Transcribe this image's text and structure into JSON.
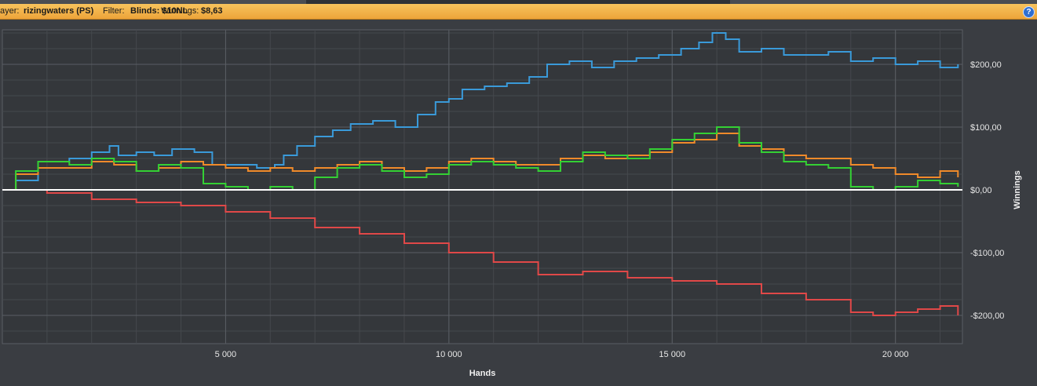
{
  "header": {
    "player_label": "ayer:",
    "player_value": "rizingwaters (PS)",
    "filter_label": "Filter:",
    "filter_value": "Blinds: $10NL",
    "winnings_label": "Winnings:",
    "winnings_value": "$8,63",
    "help_icon": "help-icon"
  },
  "colors": {
    "background": "#3a3d42",
    "plot_background": "#34373b",
    "grid_major": "#5a5e64",
    "grid_minor": "#45484d",
    "header_bar": "#f0a840",
    "zero_line": "#ffffff"
  },
  "chart_data": {
    "type": "line",
    "title": "",
    "xlabel": "Hands",
    "ylabel": "Winnings",
    "xlim": [
      0,
      21500
    ],
    "ylim": [
      -245,
      255
    ],
    "x_ticks": [
      5000,
      10000,
      15000,
      20000
    ],
    "x_tick_labels": [
      "5 000",
      "10 000",
      "15 000",
      "20 000"
    ],
    "y_ticks": [
      200,
      100,
      0,
      -100,
      -200
    ],
    "y_tick_labels": [
      "$200,00",
      "$100,00",
      "$0,00",
      "-$100,00",
      "-$200,00"
    ],
    "y_axis_side": "right",
    "grid": true,
    "legend": "none",
    "series": [
      {
        "color": "#3a9ad9",
        "x": [
          0,
          300,
          800,
          1500,
          2000,
          2400,
          2600,
          3000,
          3400,
          3800,
          4300,
          4700,
          5200,
          5700,
          6100,
          6300,
          6600,
          7000,
          7400,
          7800,
          8300,
          8800,
          9300,
          9700,
          10000,
          10300,
          10800,
          11300,
          11800,
          12200,
          12700,
          13200,
          13700,
          14200,
          14700,
          15200,
          15600,
          15900,
          16200,
          16500,
          17000,
          17500,
          18000,
          18500,
          19000,
          19500,
          20000,
          20500,
          21000,
          21400
        ],
        "y": [
          0,
          15,
          45,
          50,
          60,
          70,
          55,
          60,
          55,
          65,
          60,
          40,
          40,
          35,
          40,
          55,
          70,
          85,
          95,
          105,
          110,
          100,
          120,
          140,
          145,
          160,
          165,
          170,
          180,
          200,
          205,
          195,
          205,
          210,
          215,
          225,
          235,
          250,
          240,
          220,
          225,
          215,
          215,
          220,
          205,
          210,
          200,
          205,
          195,
          200
        ]
      },
      {
        "color": "#f08a2a",
        "x": [
          0,
          300,
          800,
          1500,
          2000,
          2500,
          3000,
          3500,
          4000,
          4500,
          5000,
          5500,
          6000,
          6500,
          7000,
          7500,
          8000,
          8500,
          9000,
          9500,
          10000,
          10500,
          11000,
          11500,
          12000,
          12500,
          13000,
          13500,
          14000,
          14500,
          15000,
          15500,
          16000,
          16500,
          17000,
          17500,
          18000,
          18500,
          19000,
          19500,
          20000,
          20500,
          21000,
          21400
        ],
        "y": [
          0,
          25,
          35,
          35,
          45,
          40,
          30,
          35,
          45,
          40,
          35,
          30,
          35,
          30,
          35,
          40,
          45,
          35,
          30,
          35,
          45,
          50,
          45,
          40,
          40,
          50,
          55,
          50,
          55,
          60,
          75,
          80,
          90,
          70,
          65,
          55,
          50,
          50,
          40,
          35,
          25,
          20,
          30,
          20
        ]
      },
      {
        "color": "#34d034",
        "x": [
          0,
          300,
          800,
          1500,
          2000,
          2500,
          3000,
          3500,
          4000,
          4500,
          5000,
          5500,
          6000,
          6500,
          7000,
          7500,
          8000,
          8500,
          9000,
          9500,
          10000,
          10500,
          11000,
          11500,
          12000,
          12500,
          13000,
          13500,
          14000,
          14500,
          15000,
          15500,
          16000,
          16500,
          17000,
          17500,
          18000,
          18500,
          19000,
          19500,
          20000,
          20500,
          21000,
          21400
        ],
        "y": [
          0,
          30,
          45,
          40,
          50,
          45,
          30,
          40,
          35,
          10,
          5,
          0,
          5,
          0,
          20,
          35,
          40,
          30,
          20,
          25,
          40,
          45,
          40,
          35,
          30,
          45,
          60,
          55,
          50,
          65,
          80,
          90,
          100,
          75,
          60,
          45,
          40,
          35,
          5,
          0,
          5,
          15,
          10,
          5
        ]
      },
      {
        "color": "#e04848",
        "x": [
          0,
          1000,
          2000,
          3000,
          4000,
          5000,
          6000,
          7000,
          8000,
          9000,
          10000,
          11000,
          12000,
          13000,
          14000,
          15000,
          16000,
          17000,
          18000,
          19000,
          19500,
          20000,
          20500,
          21000,
          21400
        ],
        "y": [
          0,
          -5,
          -15,
          -20,
          -25,
          -35,
          -45,
          -60,
          -70,
          -85,
          -100,
          -115,
          -135,
          -130,
          -140,
          -145,
          -150,
          -165,
          -175,
          -195,
          -200,
          -195,
          -190,
          -185,
          -200
        ]
      }
    ]
  }
}
